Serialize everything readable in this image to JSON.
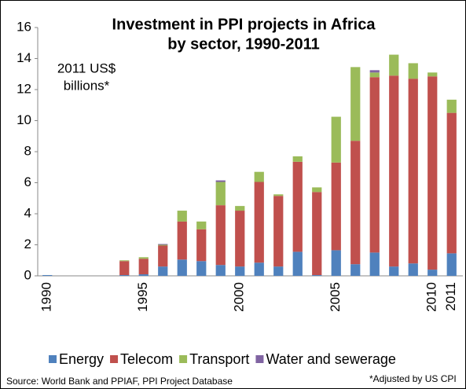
{
  "chart_data": {
    "type": "stacked_bar",
    "title": [
      "Investment in PPI projects in Africa",
      "by sector, 1990-2011"
    ],
    "y_label": [
      "2011 US$",
      "billions*"
    ],
    "categories": [
      "1990",
      null,
      null,
      null,
      null,
      "1995",
      null,
      null,
      null,
      null,
      "2000",
      null,
      null,
      null,
      null,
      "2005",
      null,
      null,
      null,
      null,
      "2010",
      "2011"
    ],
    "series": [
      {
        "name": "Energy",
        "color": "#4f81bd",
        "values": [
          0.05,
          0,
          0,
          0,
          0.05,
          0.1,
          0.6,
          1.05,
          0.95,
          0.7,
          0.6,
          0.85,
          0.6,
          1.55,
          0.05,
          1.65,
          0.75,
          1.5,
          0.6,
          0.8,
          0.4,
          1.45
        ]
      },
      {
        "name": "Telecom",
        "color": "#c0504d",
        "values": [
          0,
          0,
          0,
          0,
          0.9,
          1.0,
          1.35,
          2.45,
          2.05,
          3.85,
          3.6,
          5.2,
          4.55,
          5.8,
          5.35,
          5.65,
          7.95,
          11.3,
          12.3,
          11.9,
          12.45,
          9.05
        ]
      },
      {
        "name": "Transport",
        "color": "#9bbb59",
        "values": [
          0,
          0,
          0,
          0,
          0.05,
          0.1,
          0.05,
          0.7,
          0.5,
          1.5,
          0.3,
          0.65,
          0.1,
          0.35,
          0.3,
          2.95,
          4.75,
          0.3,
          1.35,
          1.0,
          0.25,
          0.85
        ]
      },
      {
        "name": "Water and sewerage",
        "color": "#8064a2",
        "values": [
          0,
          0,
          0,
          0,
          0,
          0,
          0.05,
          0,
          0,
          0.1,
          0,
          0,
          0,
          0,
          0,
          0,
          0,
          0.15,
          0,
          0,
          0,
          0
        ]
      }
    ],
    "ylim": [
      0,
      16
    ],
    "yticks": [
      0,
      2,
      4,
      6,
      8,
      10,
      12,
      14,
      16
    ],
    "source": "Source:  World Bank and PPIAF, PPI Project Database",
    "note": "*Adjusted by US CPI",
    "legend": "bottom"
  }
}
